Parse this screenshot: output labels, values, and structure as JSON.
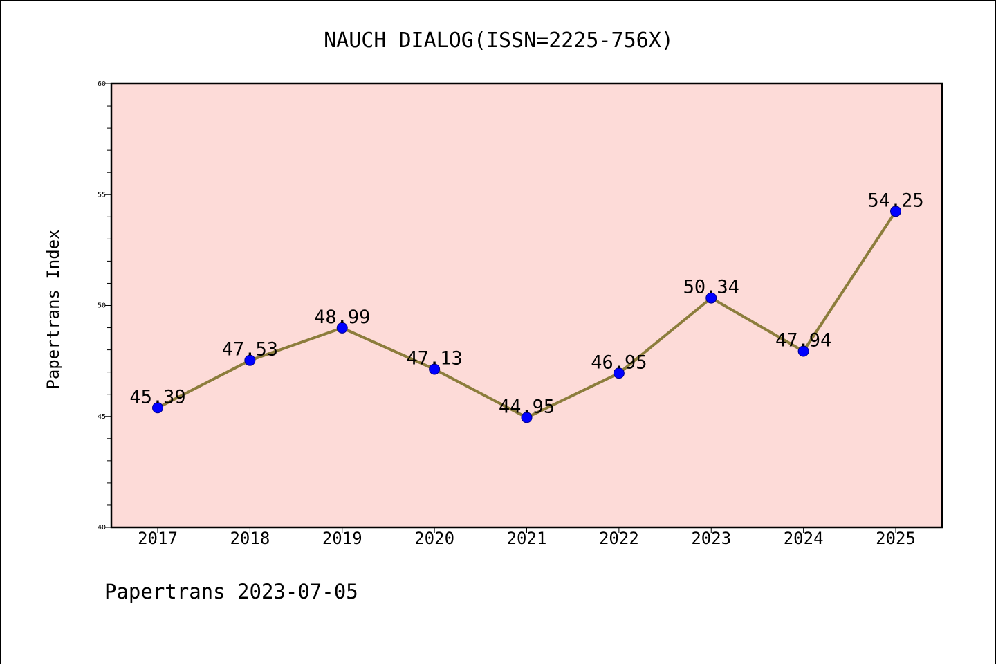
{
  "footer": "Papertrans 2023-07-05",
  "chart_data": {
    "type": "line",
    "title": "NAUCH DIALOG(ISSN=2225-756X)",
    "xlabel": "",
    "ylabel": "Papertrans Index",
    "categories": [
      "2017",
      "2018",
      "2019",
      "2020",
      "2021",
      "2022",
      "2023",
      "2024",
      "2025"
    ],
    "series": [
      {
        "values": [
          45.39,
          47.53,
          48.99,
          47.13,
          44.95,
          46.95,
          50.34,
          47.94,
          54.25
        ],
        "labels": [
          "45.39",
          "47.53",
          "48.99",
          "47.13",
          "44.95",
          "46.95",
          "50.34",
          "47.94",
          "54.25"
        ]
      }
    ],
    "ylim": [
      40,
      60
    ],
    "yticks": [
      40,
      45,
      50,
      55,
      60
    ],
    "ytick_labels": [
      "40",
      "45",
      "50",
      "55",
      "60"
    ],
    "y_minor_step": 1,
    "grid": false,
    "legend": "none",
    "colors": {
      "plot_background": "#fddbd8",
      "line": "#8c7d3c",
      "marker": "#0000ff",
      "marker_edge": "#00008b",
      "axes": "#000000"
    }
  }
}
